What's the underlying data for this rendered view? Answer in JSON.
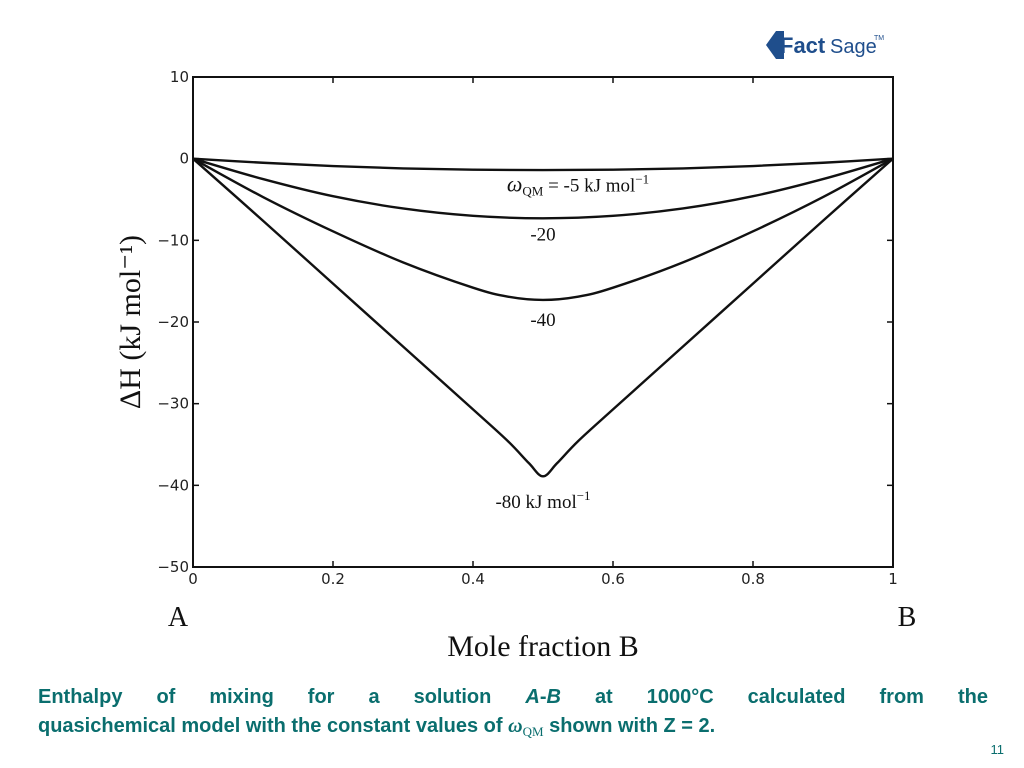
{
  "logo": {
    "brand_part1": "Fact",
    "brand_part2": "Sage",
    "trademark": "TM"
  },
  "chart_data": {
    "type": "line",
    "xlabel": "Mole fraction B",
    "ylabel": "ΔH (kJ mol⁻¹)",
    "xlim": [
      0,
      1
    ],
    "ylim": [
      -50,
      10
    ],
    "x_ticks": [
      0,
      0.2,
      0.4,
      0.6,
      0.8,
      1
    ],
    "x_tick_labels": [
      "0",
      "0.2",
      "0.4",
      "0.6",
      "0.8",
      "1"
    ],
    "y_ticks": [
      10,
      0,
      -10,
      -20,
      -30,
      -40,
      -50
    ],
    "y_tick_labels": [
      "10",
      "0",
      "−10",
      "−20",
      "−30",
      "−40",
      "−50"
    ],
    "x_end_labels": {
      "left": "A",
      "right": "B"
    },
    "grid": false,
    "series": [
      {
        "label": "ωQM = -5 kJ mol−1",
        "x": [
          0,
          0.1,
          0.2,
          0.3,
          0.4,
          0.5,
          0.6,
          0.7,
          0.8,
          0.9,
          1
        ],
        "y": [
          0,
          -0.5,
          -0.9,
          -1.2,
          -1.35,
          -1.4,
          -1.35,
          -1.2,
          -0.9,
          -0.5,
          0
        ]
      },
      {
        "label": "-20",
        "x": [
          0,
          0.1,
          0.2,
          0.3,
          0.4,
          0.5,
          0.6,
          0.7,
          0.8,
          0.9,
          1
        ],
        "y": [
          0,
          -2.5,
          -4.6,
          -6.1,
          -7.0,
          -7.3,
          -7.0,
          -6.1,
          -4.6,
          -2.5,
          0
        ]
      },
      {
        "label": "-40",
        "x": [
          0,
          0.1,
          0.2,
          0.3,
          0.4,
          0.45,
          0.5,
          0.55,
          0.6,
          0.7,
          0.8,
          0.9,
          1
        ],
        "y": [
          0,
          -4.7,
          -8.9,
          -12.7,
          -15.8,
          -16.9,
          -17.3,
          -16.9,
          -15.8,
          -12.7,
          -8.9,
          -4.7,
          0
        ]
      },
      {
        "label": "-80 kJ mol−1",
        "x": [
          0,
          0.1,
          0.2,
          0.3,
          0.4,
          0.45,
          0.48,
          0.5,
          0.52,
          0.55,
          0.6,
          0.7,
          0.8,
          0.9,
          1
        ],
        "y": [
          0,
          -7.6,
          -15.3,
          -23.0,
          -30.7,
          -34.6,
          -37.3,
          -38.9,
          -37.3,
          -34.6,
          -30.7,
          -23.0,
          -15.3,
          -7.6,
          0
        ]
      }
    ],
    "annotations": [
      {
        "text": "ωQM = -5 kJ mol−1",
        "x": 0.55,
        "y": -4.0
      },
      {
        "text": "-20",
        "x": 0.5,
        "y": -10.0
      },
      {
        "text": "-40",
        "x": 0.5,
        "y": -20.5
      },
      {
        "text": "-80 kJ mol−1",
        "x": 0.5,
        "y": -42.8
      }
    ]
  },
  "caption": {
    "part1": "Enthalpy of mixing for a solution ",
    "solution_a": "A",
    "dash": "-",
    "solution_b": "B",
    "part2": " at 1000°C calculated from the",
    "part3": "quasichemical model with the constant values of ",
    "omega": "ω",
    "omega_sub": "QM",
    "part4": " shown with Z = 2."
  },
  "page_number": "11",
  "colors": {
    "caption": "#0a6e6e",
    "logo_blue": "#1f4e8c",
    "line": "#111111"
  }
}
